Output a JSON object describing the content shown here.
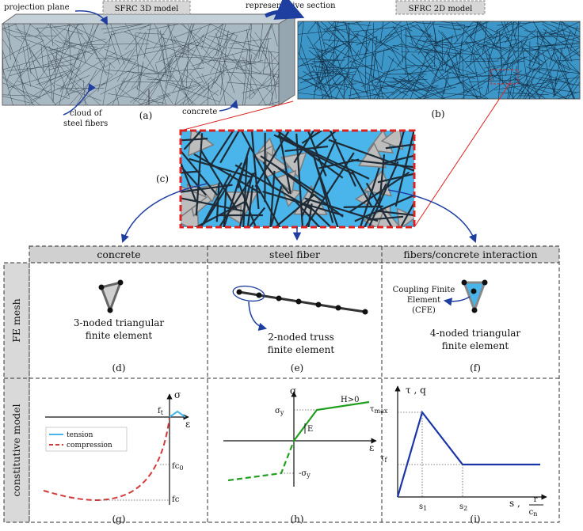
{
  "panel_a": {
    "projection_plane": "projection plane",
    "title": "SFRC 3D model",
    "fibers_label": [
      "cloud of",
      "steel fibers"
    ],
    "concrete_label": "concrete",
    "caption": "(a)"
  },
  "representative_section": "representative section",
  "panel_b": {
    "title": "SFRC 2D model",
    "caption": "(b)"
  },
  "panel_c": {
    "caption": "(c)"
  },
  "table": {
    "columns": [
      "concrete",
      "steel fiber",
      "fibers/concrete interaction"
    ],
    "rows": [
      "FE mesh",
      "constitutive model"
    ],
    "mesh": {
      "concrete": {
        "description": [
          "3-noded triangular",
          "finite element"
        ],
        "caption": "(d)"
      },
      "fiber": {
        "description": [
          "2-noded truss",
          "finite element"
        ],
        "caption": "(e)"
      },
      "interaction": {
        "cfe_label": [
          "Coupling Finite",
          "Element",
          "(CFE)"
        ],
        "description": [
          "4-noded triangular",
          "finite element"
        ],
        "caption": "(f)"
      }
    },
    "constitutive": {
      "concrete": {
        "stress": "σ",
        "strain": "ε",
        "ft": {
          "text": "f",
          "sub": "t"
        },
        "fc0": {
          "text": "fc",
          "sub": "0"
        },
        "fc": "fc",
        "legend": [
          "tension",
          "compression"
        ],
        "caption": "(g)"
      },
      "fiber": {
        "stress": "σ",
        "strain": "ε",
        "sy": {
          "text": "σ",
          "sub": "y"
        },
        "neg_sy": {
          "text": "-σ",
          "sub": "y"
        },
        "modulus": "E",
        "hardening": "H>0",
        "caption": "(h)"
      },
      "interaction": {
        "stress": "τ , q",
        "tmax": {
          "text": "τ",
          "sub": "max"
        },
        "tf": {
          "text": "τ",
          "sub": "f"
        },
        "s1": {
          "text": "s",
          "sub": "1"
        },
        "s2": {
          "text": "s",
          "sub": "2"
        },
        "slip": "s ,",
        "ratio_num": "r",
        "ratio_den": {
          "text": "c",
          "sub": "n"
        },
        "caption": "(i)"
      }
    }
  }
}
